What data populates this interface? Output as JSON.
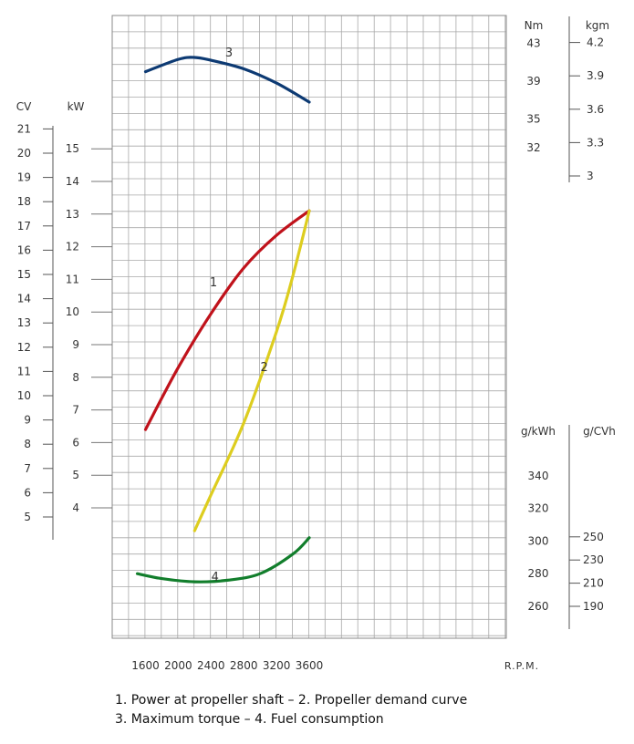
{
  "chart_data": {
    "type": "line",
    "x_unit_label": "R.P.M.",
    "x_ticks": [
      1600,
      2000,
      2400,
      2800,
      3200,
      3600
    ],
    "axes": {
      "cv": {
        "label": "CV",
        "ticks": [
          5,
          6,
          7,
          8,
          9,
          10,
          11,
          12,
          13,
          14,
          15,
          16,
          17,
          18,
          19,
          20,
          21
        ]
      },
      "kw": {
        "label": "kW",
        "ticks": [
          4,
          5,
          6,
          7,
          8,
          9,
          10,
          11,
          12,
          13,
          14,
          15
        ]
      },
      "nm": {
        "label": "Nm",
        "ticks": [
          32,
          35,
          39,
          43
        ]
      },
      "kgm": {
        "label": "kgm",
        "ticks": [
          "3",
          "3.3",
          "3.6",
          "3.9",
          "4.2"
        ]
      },
      "gkwh": {
        "label": "g/kWh",
        "ticks": [
          260,
          280,
          300,
          320,
          340
        ]
      },
      "gcvh": {
        "label": "g/CVh",
        "ticks": [
          190,
          210,
          230,
          250
        ]
      }
    },
    "series": [
      {
        "label": "1",
        "color": "#c0121b",
        "axis": "kw",
        "x": [
          1600,
          2000,
          2400,
          2800,
          3200,
          3600
        ],
        "y": [
          6.4,
          8.3,
          9.95,
          11.35,
          12.35,
          13.1
        ]
      },
      {
        "label": "2",
        "color": "#ddcd1f",
        "axis": "kw",
        "x": [
          2200,
          2400,
          2800,
          3200,
          3400,
          3600
        ],
        "y": [
          3.3,
          4.4,
          6.6,
          9.4,
          11.1,
          13.1
        ]
      },
      {
        "label": "3",
        "color": "#0d3a73",
        "axis": "nm",
        "x": [
          1600,
          2000,
          2200,
          2400,
          2800,
          3200,
          3600
        ],
        "y": [
          40.0,
          41.3,
          41.5,
          41.2,
          40.3,
          38.8,
          36.8
        ]
      },
      {
        "label": "4",
        "color": "#127e2c",
        "axis": "gkwh",
        "x": [
          1500,
          1800,
          2200,
          2600,
          3000,
          3400,
          3600
        ],
        "y": [
          280,
          277,
          275,
          276,
          280,
          292,
          302
        ]
      }
    ]
  },
  "legend": {
    "line1": "1. Power at propeller shaft –  2. Propeller demand curve",
    "line2": "3. Maximum torque –  4. Fuel consumption"
  }
}
